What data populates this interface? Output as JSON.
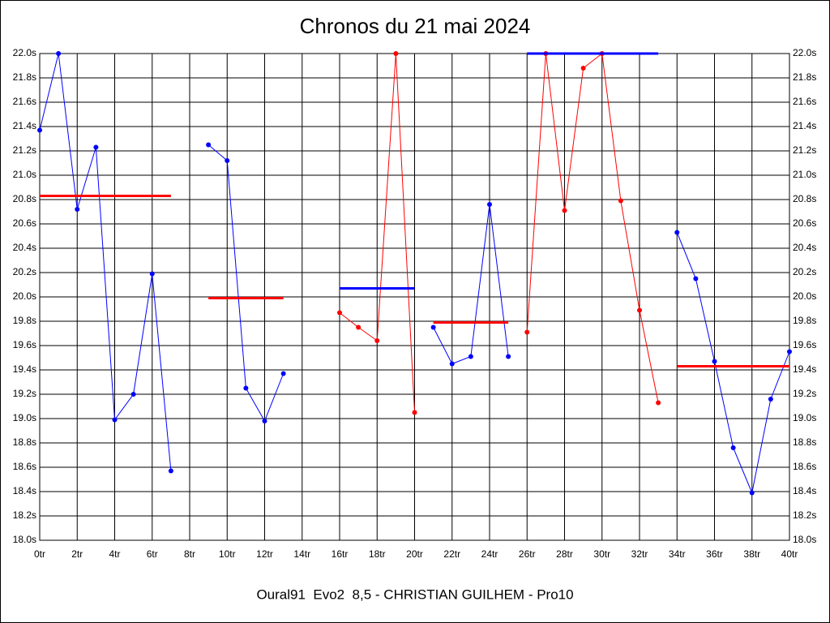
{
  "chart_data": {
    "type": "line",
    "title": "Chronos du 21 mai 2024",
    "subtitle": "Oural91  Evo2  8,5 - CHRISTIAN GUILHEM - Pro10",
    "xlim": [
      0,
      40
    ],
    "xticks": [
      {
        "value": 0,
        "label": "0tr"
      },
      {
        "value": 2,
        "label": "2tr"
      },
      {
        "value": 4,
        "label": "4tr"
      },
      {
        "value": 6,
        "label": "6tr"
      },
      {
        "value": 8,
        "label": "8tr"
      },
      {
        "value": 10,
        "label": "10tr"
      },
      {
        "value": 12,
        "label": "12tr"
      },
      {
        "value": 14,
        "label": "14tr"
      },
      {
        "value": 16,
        "label": "16tr"
      },
      {
        "value": 18,
        "label": "18tr"
      },
      {
        "value": 20,
        "label": "20tr"
      },
      {
        "value": 22,
        "label": "22tr"
      },
      {
        "value": 24,
        "label": "24tr"
      },
      {
        "value": 26,
        "label": "26tr"
      },
      {
        "value": 28,
        "label": "28tr"
      },
      {
        "value": 30,
        "label": "30tr"
      },
      {
        "value": 32,
        "label": "32tr"
      },
      {
        "value": 34,
        "label": "34tr"
      },
      {
        "value": 36,
        "label": "36tr"
      },
      {
        "value": 38,
        "label": "38tr"
      },
      {
        "value": 40,
        "label": "40tr"
      }
    ],
    "ylim": [
      18,
      22
    ],
    "yticks": [
      {
        "value": 18,
        "label": "18.0s"
      },
      {
        "value": 18.2,
        "label": "18.2s"
      },
      {
        "value": 18.4,
        "label": "18.4s"
      },
      {
        "value": 18.6,
        "label": "18.6s"
      },
      {
        "value": 18.8,
        "label": "18.8s"
      },
      {
        "value": 19,
        "label": "19.0s"
      },
      {
        "value": 19.2,
        "label": "19.2s"
      },
      {
        "value": 19.4,
        "label": "19.4s"
      },
      {
        "value": 19.6,
        "label": "19.6s"
      },
      {
        "value": 19.8,
        "label": "19.8s"
      },
      {
        "value": 20,
        "label": "20.0s"
      },
      {
        "value": 20.2,
        "label": "20.2s"
      },
      {
        "value": 20.4,
        "label": "20.4s"
      },
      {
        "value": 20.6,
        "label": "20.6s"
      },
      {
        "value": 20.8,
        "label": "20.8s"
      },
      {
        "value": 21,
        "label": "21.0s"
      },
      {
        "value": 21.2,
        "label": "21.2s"
      },
      {
        "value": 21.4,
        "label": "21.4s"
      },
      {
        "value": 21.6,
        "label": "21.6s"
      },
      {
        "value": 21.8,
        "label": "21.8s"
      },
      {
        "value": 22,
        "label": "22.0s"
      }
    ],
    "grid": true,
    "series": [
      {
        "color": "#0000ff",
        "markers": true,
        "x": [
          0,
          1,
          2,
          3,
          4,
          5,
          6,
          7
        ],
        "values": [
          21.37,
          22.0,
          20.72,
          21.23,
          18.99,
          19.2,
          20.19,
          18.57
        ]
      },
      {
        "color": "#ff0000",
        "markers": false,
        "x": [
          0,
          7
        ],
        "values": [
          20.83,
          20.83
        ]
      },
      {
        "color": "#0000ff",
        "markers": true,
        "x": [
          9,
          10,
          11,
          12,
          13
        ],
        "values": [
          21.25,
          21.12,
          19.25,
          18.98,
          19.37
        ]
      },
      {
        "color": "#ff0000",
        "markers": false,
        "x": [
          9,
          13
        ],
        "values": [
          19.99,
          19.99
        ]
      },
      {
        "color": "#ff0000",
        "markers": true,
        "x": [
          16,
          17,
          18,
          19,
          20
        ],
        "values": [
          19.87,
          19.75,
          19.64,
          22.0,
          19.05
        ]
      },
      {
        "color": "#0000ff",
        "markers": false,
        "x": [
          16,
          20
        ],
        "values": [
          20.07,
          20.07
        ]
      },
      {
        "color": "#0000ff",
        "markers": true,
        "x": [
          21,
          22,
          23,
          24,
          25
        ],
        "values": [
          19.75,
          19.45,
          19.51,
          20.76,
          19.51
        ]
      },
      {
        "color": "#ff0000",
        "markers": false,
        "x": [
          21,
          25
        ],
        "values": [
          19.79,
          19.79
        ]
      },
      {
        "color": "#ff0000",
        "markers": true,
        "x": [
          26,
          27,
          28,
          29,
          30,
          31,
          32,
          33
        ],
        "values": [
          19.71,
          22.0,
          20.71,
          21.88,
          22.0,
          20.79,
          19.89,
          19.13
        ]
      },
      {
        "color": "#0000ff",
        "markers": false,
        "x": [
          26,
          33
        ],
        "values": [
          22.0,
          22.0
        ]
      },
      {
        "color": "#0000ff",
        "markers": true,
        "x": [
          34,
          35,
          36,
          37,
          38,
          39,
          40
        ],
        "values": [
          20.53,
          20.15,
          19.47,
          18.76,
          18.39,
          19.16,
          19.55
        ]
      },
      {
        "color": "#ff0000",
        "markers": false,
        "x": [
          34,
          40
        ],
        "values": [
          19.43,
          19.43
        ]
      }
    ]
  }
}
